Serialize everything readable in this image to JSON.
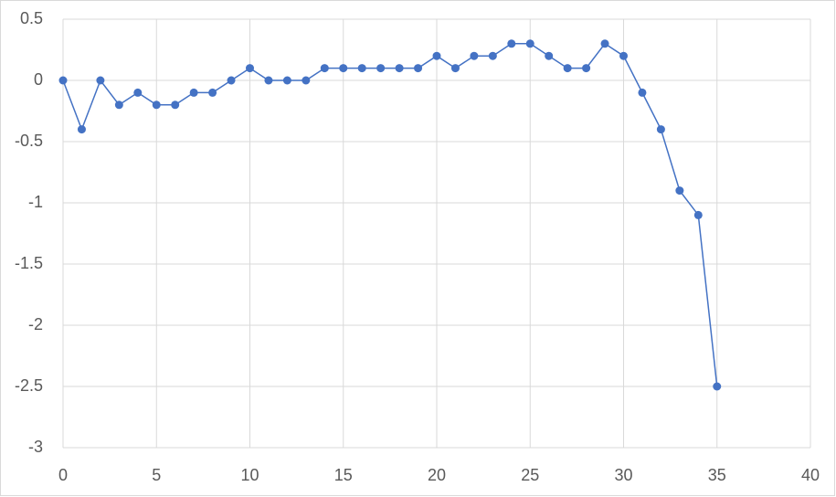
{
  "chart_data": {
    "type": "scatter-line",
    "x": [
      0,
      1,
      2,
      3,
      4,
      5,
      6,
      7,
      8,
      9,
      10,
      11,
      12,
      13,
      14,
      15,
      16,
      17,
      18,
      19,
      20,
      21,
      22,
      23,
      24,
      25,
      26,
      27,
      28,
      29,
      30,
      31,
      32,
      33,
      34,
      35
    ],
    "series": [
      {
        "color": "#4472c4",
        "values": [
          0,
          -0.4,
          0,
          -0.2,
          -0.1,
          -0.2,
          -0.2,
          -0.1,
          -0.1,
          0,
          0.1,
          0,
          0,
          0,
          0.1,
          0.1,
          0.1,
          0.1,
          0.1,
          0.1,
          0.2,
          0.1,
          0.2,
          0.2,
          0.3,
          0.3,
          0.2,
          0.1,
          0.1,
          0.3,
          0.2,
          -0.1,
          -0.4,
          -0.9,
          -1.1,
          -2.5
        ]
      }
    ],
    "xlim": [
      0,
      40
    ],
    "xticks": [
      0,
      5,
      10,
      15,
      20,
      25,
      30,
      35,
      40
    ],
    "ylim": [
      -3,
      0.5
    ],
    "yticks": [
      -3,
      -2.5,
      -2,
      -1.5,
      -1,
      -0.5,
      0,
      0.5
    ],
    "grid": true
  }
}
